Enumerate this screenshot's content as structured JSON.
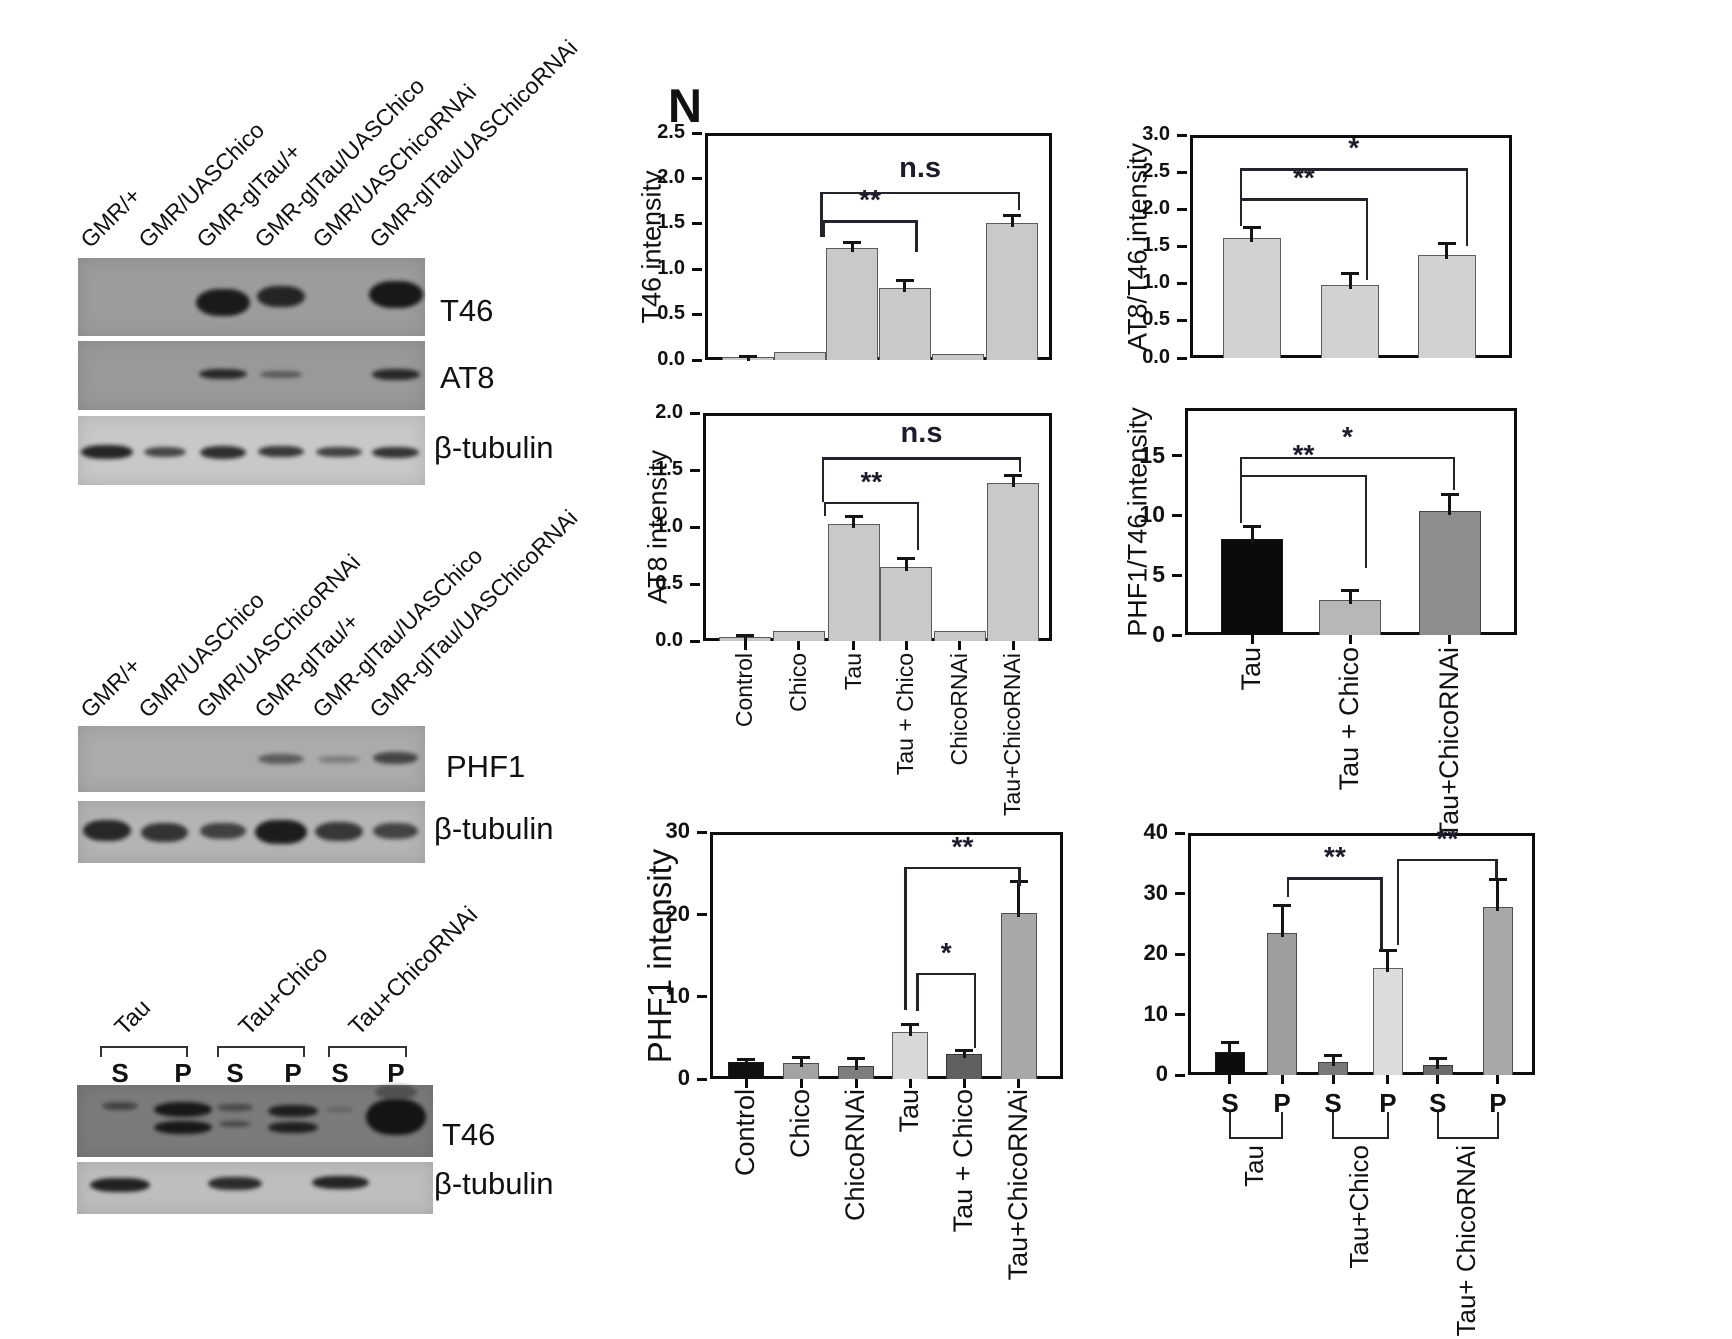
{
  "panel_letter": "N",
  "blots": {
    "panel_top": {
      "lane_labels": [
        "GMR/+",
        "GMR/UASChico",
        "GMR-glTau/+",
        "GMR-glTau/UASChico",
        "GMR/UASChicoRNAi",
        "GMR-glTau/UASChicoRNAi"
      ],
      "rows": [
        {
          "antibody": "T46",
          "band_lanes": [
            0,
            0,
            0.95,
            0.88,
            0,
            0.97
          ]
        },
        {
          "antibody": "AT8",
          "band_lanes": [
            0,
            0,
            0.85,
            0.48,
            0,
            0.85
          ]
        },
        {
          "antibody": "β-tubulin",
          "band_lanes": [
            0.9,
            0.72,
            0.85,
            0.8,
            0.75,
            0.82
          ]
        }
      ]
    },
    "panel_middle": {
      "lane_labels": [
        "GMR/+",
        "GMR/UASChico",
        "GMR/UASChicoRNAi",
        "GMR-glTau/+",
        "GMR-glTau/UASChico",
        "GMR-glTau/UASChicoRNAi"
      ],
      "rows": [
        {
          "antibody": "PHF1",
          "band_lanes": [
            0,
            0,
            0,
            0.52,
            0.3,
            0.68
          ]
        },
        {
          "antibody": "β-tubulin",
          "band_lanes": [
            0.88,
            0.8,
            0.72,
            0.95,
            0.78,
            0.7
          ]
        }
      ]
    },
    "panel_bottom": {
      "group_labels": [
        "Tau",
        "Tau+Chico",
        "Tau+ChicoRNAi"
      ],
      "fraction_labels": [
        "S",
        "P",
        "S",
        "P",
        "S",
        "P"
      ],
      "rows": [
        {
          "antibody": "T46",
          "band_lanes": [
            0.55,
            0.96,
            0.5,
            0.9,
            0.22,
            1
          ]
        },
        {
          "antibody": "β-tubulin",
          "band_lanes": [
            0.92,
            0,
            0.86,
            0,
            0.9,
            0
          ]
        }
      ]
    }
  },
  "chart_data": [
    {
      "name": "t46-intensity",
      "type": "bar",
      "title": "",
      "xlabel": "",
      "ylabel": "T46 intensity",
      "ylim": [
        0,
        2.5
      ],
      "yticks": [
        0,
        0.5,
        1,
        1.5,
        2,
        2.5
      ],
      "ytick_labels": [
        "0.0",
        "0.5",
        "1.0",
        "1.5",
        "2.0",
        "2.5"
      ],
      "categories": [
        "Control",
        "Chico",
        "Tau",
        "Tau + Chico",
        "ChicoRNAi",
        "Tau+ChicoRNAi"
      ],
      "values": [
        0.03,
        0.09,
        1.23,
        0.79,
        0.07,
        1.51
      ],
      "errors": [
        0.015,
        0,
        0.07,
        0.09,
        0,
        0.09
      ],
      "bar_colors": [
        "#c9c9c9",
        "#c9c9c9",
        "#c9c9c9",
        "#c9c9c9",
        "#c9c9c9",
        "#c9c9c9"
      ],
      "show_x_labels": false,
      "grid": false,
      "legend": false,
      "brackets": [
        {
          "from": 2,
          "to": 3,
          "level": 1.54,
          "drop_from": 1.36,
          "drop_to": 1.19,
          "label": "**"
        },
        {
          "from": 2,
          "to": 5,
          "level": 1.85,
          "drop_from": 1.36,
          "drop_to": 1.65,
          "label": "n.s"
        }
      ]
    },
    {
      "name": "at8-intensity",
      "type": "bar",
      "title": "",
      "xlabel": "",
      "ylabel": "AT8 intensity",
      "ylim": [
        0,
        2
      ],
      "yticks": [
        0,
        0.5,
        1,
        1.5,
        2
      ],
      "ytick_labels": [
        "0.0",
        "0.5",
        "1.0",
        "1.5",
        "2.0"
      ],
      "categories": [
        "Control",
        "Chico",
        "Tau",
        "Tau + Chico",
        "ChicoRNAi",
        "Tau+ChicoRNAi"
      ],
      "values": [
        0.035,
        0.09,
        1.03,
        0.65,
        0.09,
        1.39
      ],
      "errors": [
        0.015,
        0,
        0.07,
        0.08,
        0,
        0.07
      ],
      "bar_colors": [
        "#c9c9c9",
        "#c9c9c9",
        "#c9c9c9",
        "#c9c9c9",
        "#c9c9c9",
        "#c9c9c9"
      ],
      "show_x_labels": true,
      "grid": false,
      "legend": false,
      "brackets": [
        {
          "from": 2,
          "to": 3,
          "level": 1.22,
          "drop_from": 1.1,
          "drop_to": 0.8,
          "label": "**"
        },
        {
          "from": 2,
          "to": 5,
          "level": 1.61,
          "drop_from": 1.22,
          "drop_to": 1.48,
          "label": "n.s"
        }
      ]
    },
    {
      "name": "at8-t46-ratio",
      "type": "bar",
      "title": "",
      "xlabel": "",
      "ylabel": "AT8/T46 intensity",
      "ylim": [
        0,
        3
      ],
      "yticks": [
        0,
        0.5,
        1,
        1.5,
        2,
        2.5,
        3
      ],
      "ytick_labels": [
        "0.0",
        "0.5",
        "1.0",
        "1.5",
        "2.0",
        "2.5",
        "3.0"
      ],
      "categories": [
        "Tau",
        "Tau + Chico",
        "Tau+ChicoRNAi"
      ],
      "values": [
        1.61,
        0.98,
        1.39
      ],
      "errors": [
        0.15,
        0.16,
        0.16
      ],
      "bar_colors": [
        "#d2d2d2",
        "#d2d2d2",
        "#d2d2d2"
      ],
      "show_x_labels": false,
      "grid": false,
      "legend": false,
      "brackets": [
        {
          "from": 0,
          "to": 1,
          "level": 2.15,
          "drop_from": 1.78,
          "drop_to": 1.05,
          "label": "**"
        },
        {
          "from": 0,
          "to": 2,
          "level": 2.55,
          "drop_from": 1.78,
          "drop_to": 1.5,
          "label": "*"
        }
      ]
    },
    {
      "name": "phf1-t46-ratio",
      "type": "bar",
      "title": "",
      "xlabel": "",
      "ylabel": "PHF1/T46 intensity",
      "ylim": [
        0,
        19
      ],
      "yticks": [
        0,
        5,
        10,
        15
      ],
      "ytick_labels": [
        "0",
        "5",
        "10",
        "15"
      ],
      "categories": [
        "Tau",
        "Tau + Chico",
        "Tau+ChicoRNAi"
      ],
      "values": [
        8,
        2.9,
        10.4
      ],
      "errors": [
        1.1,
        0.9,
        1.4
      ],
      "bar_colors": [
        "#0b0b0b",
        "#b7b7b7",
        "#8e8e8e"
      ],
      "show_x_labels": true,
      "grid": false,
      "legend": false,
      "brackets": [
        {
          "from": 0,
          "to": 1,
          "level": 13.4,
          "drop_from": 9.4,
          "drop_to": 5.6,
          "label": "**"
        },
        {
          "from": 0,
          "to": 2,
          "level": 14.9,
          "drop_from": 9.4,
          "drop_to": 12.1,
          "label": "*"
        }
      ]
    },
    {
      "name": "phf1-intensity",
      "type": "bar",
      "title": "",
      "xlabel": "",
      "ylabel": "PHF1 intensity",
      "ylim": [
        0,
        30
      ],
      "yticks": [
        0,
        10,
        20,
        30
      ],
      "ytick_labels": [
        "0",
        "10",
        "20",
        "30"
      ],
      "categories": [
        "Control",
        "Chico",
        "ChicoRNAi",
        "Tau",
        "Tau + Chico",
        "Tau+ChicoRNAi"
      ],
      "values": [
        2.1,
        1.9,
        1.6,
        5.7,
        3,
        20.2
      ],
      "errors": [
        0.3,
        0.8,
        0.9,
        1,
        0.5,
        3.8
      ],
      "bar_colors": [
        "#101010",
        "#a3a3a3",
        "#7d7d7d",
        "#d8d8d8",
        "#606060",
        "#a8a8a8"
      ],
      "show_x_labels": true,
      "grid": false,
      "legend": false,
      "brackets": [
        {
          "from": 3,
          "to": 4,
          "level": 12.9,
          "drop_from": 8.2,
          "drop_to": 3.8,
          "label": "*"
        },
        {
          "from": 3,
          "to": 5,
          "level": 25.8,
          "drop_from": 8.4,
          "drop_to": 23.5,
          "label": "**"
        }
      ]
    },
    {
      "name": "sarkosyl-fraction-t46",
      "type": "bar",
      "title": "",
      "xlabel": "",
      "ylabel": "",
      "ylim": [
        0,
        40
      ],
      "yticks": [
        0,
        10,
        20,
        30,
        40
      ],
      "ytick_labels": [
        "0",
        "10",
        "20",
        "30",
        "40"
      ],
      "categories": [
        "S",
        "P",
        "S",
        "P",
        "S",
        "P"
      ],
      "group_labels": [
        "Tau",
        "Tau+Chico",
        "Tau+ ChicoRNAi"
      ],
      "values": [
        3.8,
        23.5,
        2.1,
        17.7,
        1.7,
        27.8
      ],
      "errors": [
        1.7,
        4.6,
        1.2,
        3,
        1.1,
        4.6
      ],
      "bar_colors": [
        "#0d0d0d",
        "#9e9e9e",
        "#787878",
        "#dcdcdc",
        "#6b6b6b",
        "#a8a8a8"
      ],
      "show_x_labels": true,
      "grid": false,
      "legend": false,
      "brackets": [
        {
          "from": 1,
          "to": 3,
          "level": 32.7,
          "drop_from": 29.4,
          "drop_to": 20.7,
          "label": "**"
        },
        {
          "from": 3,
          "to": 5,
          "level": 35.7,
          "drop_from": 21.5,
          "drop_to": 32.6,
          "label": "**"
        }
      ]
    }
  ]
}
